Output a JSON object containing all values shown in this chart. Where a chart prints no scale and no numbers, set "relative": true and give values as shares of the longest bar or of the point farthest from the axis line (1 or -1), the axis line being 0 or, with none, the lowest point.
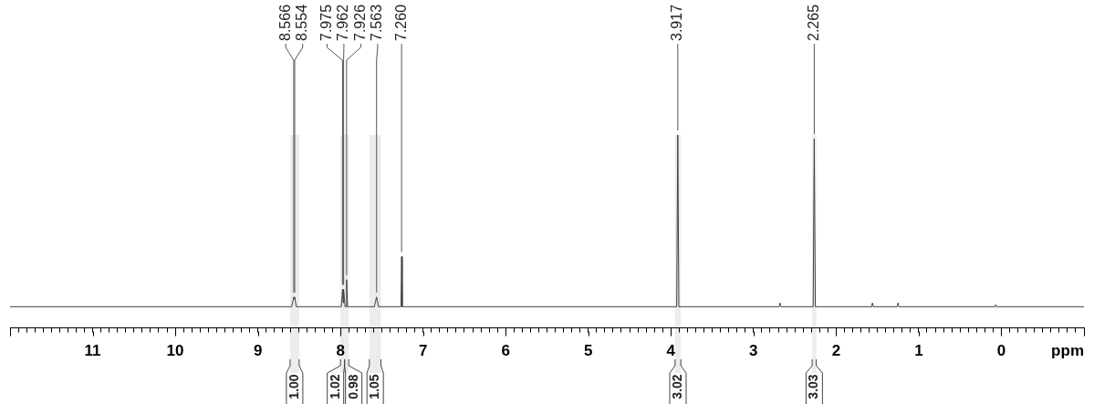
{
  "chart_data": {
    "type": "line",
    "relative": true,
    "xlabel": "ppm",
    "series": [
      {
        "color": "#404040",
        "x": [
          12,
          8.59,
          8.566,
          8.56,
          8.554,
          8.535,
          7.99,
          7.975,
          7.968,
          7.962,
          7.945,
          7.935,
          7.926,
          7.915,
          7.59,
          7.563,
          7.54,
          7.268,
          7.26,
          7.252,
          3.93,
          3.917,
          3.904,
          2.69,
          2.68,
          2.67,
          2.278,
          2.265,
          2.252,
          1.57,
          1.56,
          1.55,
          1.26,
          1.25,
          1.24,
          0.08,
          0.07,
          0.06,
          -1
        ],
        "values": [
          0.11,
          0.11,
          0.16,
          0.15,
          0.16,
          0.11,
          0.11,
          0.2,
          0.13,
          0.2,
          0.11,
          0.11,
          0.25,
          0.11,
          0.11,
          0.16,
          0.11,
          0.11,
          0.37,
          0.11,
          0.11,
          1,
          0.11,
          0.11,
          0.13,
          0.11,
          0.11,
          0.98,
          0.11,
          0.11,
          0.13,
          0.11,
          0.11,
          0.13,
          0.11,
          0.11,
          0.12,
          0.11,
          0.11
        ]
      }
    ],
    "xlim": [
      12,
      -1
    ],
    "xticks": [
      {
        "value": 12,
        "label": null
      },
      {
        "value": 11.9,
        "label": null
      },
      {
        "value": 11.8,
        "label": null
      },
      {
        "value": 11.7,
        "label": null
      },
      {
        "value": 11.6,
        "label": null
      },
      {
        "value": 11.5,
        "label": null
      },
      {
        "value": 11.4,
        "label": null
      },
      {
        "value": 11.3,
        "label": null
      },
      {
        "value": 11.2,
        "label": null
      },
      {
        "value": 11.1,
        "label": null
      },
      11,
      {
        "value": 10.9,
        "label": null
      },
      {
        "value": 10.8,
        "label": null
      },
      {
        "value": 10.7,
        "label": null
      },
      {
        "value": 10.6,
        "label": null
      },
      {
        "value": 10.5,
        "label": null
      },
      {
        "value": 10.4,
        "label": null
      },
      {
        "value": 10.3,
        "label": null
      },
      {
        "value": 10.2,
        "label": null
      },
      {
        "value": 10.1,
        "label": null
      },
      10,
      {
        "value": 9.9,
        "label": null
      },
      {
        "value": 9.8,
        "label": null
      },
      {
        "value": 9.7,
        "label": null
      },
      {
        "value": 9.6,
        "label": null
      },
      {
        "value": 9.5,
        "label": null
      },
      {
        "value": 9.4,
        "label": null
      },
      {
        "value": 9.3,
        "label": null
      },
      {
        "value": 9.2,
        "label": null
      },
      {
        "value": 9.1,
        "label": null
      },
      9,
      {
        "value": 8.9,
        "label": null
      },
      {
        "value": 8.8,
        "label": null
      },
      {
        "value": 8.7,
        "label": null
      },
      {
        "value": 8.6,
        "label": null
      },
      {
        "value": 8.5,
        "label": null
      },
      {
        "value": 8.4,
        "label": null
      },
      {
        "value": 8.3,
        "label": null
      },
      {
        "value": 8.2,
        "label": null
      },
      {
        "value": 8.1,
        "label": null
      },
      8,
      {
        "value": 7.9,
        "label": null
      },
      {
        "value": 7.8,
        "label": null
      },
      {
        "value": 7.7,
        "label": null
      },
      {
        "value": 7.6,
        "label": null
      },
      {
        "value": 7.5,
        "label": null
      },
      {
        "value": 7.4,
        "label": null
      },
      {
        "value": 7.3,
        "label": null
      },
      {
        "value": 7.2,
        "label": null
      },
      {
        "value": 7.1,
        "label": null
      },
      7,
      {
        "value": 6.9,
        "label": null
      },
      {
        "value": 6.8,
        "label": null
      },
      {
        "value": 6.7,
        "label": null
      },
      {
        "value": 6.6,
        "label": null
      },
      {
        "value": 6.5,
        "label": null
      },
      {
        "value": 6.4,
        "label": null
      },
      {
        "value": 6.3,
        "label": null
      },
      {
        "value": 6.2,
        "label": null
      },
      {
        "value": 6.1,
        "label": null
      },
      6,
      {
        "value": 5.9,
        "label": null
      },
      {
        "value": 5.8,
        "label": null
      },
      {
        "value": 5.7,
        "label": null
      },
      {
        "value": 5.6,
        "label": null
      },
      {
        "value": 5.5,
        "label": null
      },
      {
        "value": 5.4,
        "label": null
      },
      {
        "value": 5.3,
        "label": null
      },
      {
        "value": 5.2,
        "label": null
      },
      {
        "value": 5.1,
        "label": null
      },
      5,
      {
        "value": 4.9,
        "label": null
      },
      {
        "value": 4.8,
        "label": null
      },
      {
        "value": 4.7,
        "label": null
      },
      {
        "value": 4.6,
        "label": null
      },
      {
        "value": 4.5,
        "label": null
      },
      {
        "value": 4.4,
        "label": null
      },
      {
        "value": 4.3,
        "label": null
      },
      {
        "value": 4.2,
        "label": null
      },
      {
        "value": 4.1,
        "label": null
      },
      4,
      {
        "value": 3.9,
        "label": null
      },
      {
        "value": 3.8,
        "label": null
      },
      {
        "value": 3.7,
        "label": null
      },
      {
        "value": 3.6,
        "label": null
      },
      {
        "value": 3.5,
        "label": null
      },
      {
        "value": 3.4,
        "label": null
      },
      {
        "value": 3.3,
        "label": null
      },
      {
        "value": 3.2,
        "label": null
      },
      {
        "value": 3.1,
        "label": null
      },
      3,
      {
        "value": 2.9,
        "label": null
      },
      {
        "value": 2.8,
        "label": null
      },
      {
        "value": 2.7,
        "label": null
      },
      {
        "value": 2.6,
        "label": null
      },
      {
        "value": 2.5,
        "label": null
      },
      {
        "value": 2.4,
        "label": null
      },
      {
        "value": 2.3,
        "label": null
      },
      {
        "value": 2.2,
        "label": null
      },
      {
        "value": 2.1,
        "label": null
      },
      2,
      {
        "value": 1.9,
        "label": null
      },
      {
        "value": 1.8,
        "label": null
      },
      {
        "value": 1.7,
        "label": null
      },
      {
        "value": 1.6,
        "label": null
      },
      {
        "value": 1.5,
        "label": null
      },
      {
        "value": 1.4,
        "label": null
      },
      {
        "value": 1.3,
        "label": null
      },
      {
        "value": 1.2,
        "label": null
      },
      {
        "value": 1.1,
        "label": null
      },
      1,
      {
        "value": 0.9,
        "label": null
      },
      {
        "value": 0.8,
        "label": null
      },
      {
        "value": 0.7,
        "label": null
      },
      {
        "value": 0.6,
        "label": null
      },
      {
        "value": 0.5,
        "label": null
      },
      {
        "value": 0.4,
        "label": null
      },
      {
        "value": 0.3,
        "label": null
      },
      {
        "value": 0.2,
        "label": null
      },
      {
        "value": 0.1,
        "label": null
      },
      0,
      {
        "value": -0.1,
        "label": null
      },
      {
        "value": -0.2,
        "label": null
      },
      {
        "value": -0.3,
        "label": null
      },
      {
        "value": -0.4,
        "label": null
      },
      {
        "value": -0.5,
        "label": null
      },
      {
        "value": -0.6,
        "label": null
      },
      {
        "value": -0.7,
        "label": null
      },
      {
        "value": -0.8,
        "label": null
      },
      {
        "value": -0.9,
        "label": null
      },
      {
        "value": -1,
        "label": null
      }
    ],
    "annotations": [
      {
        "text": "8.566",
        "x": 8.566,
        "y": 0.16
      },
      {
        "text": "8.554",
        "x": 8.554,
        "y": 0.16
      },
      {
        "text": "7.975",
        "x": 7.975,
        "y": 0.2
      },
      {
        "text": "7.962",
        "x": 7.962,
        "y": 0.2
      },
      {
        "text": "7.926",
        "x": 7.926,
        "y": 0.25
      },
      {
        "text": "7.563",
        "x": 7.563,
        "y": 0.16
      },
      {
        "text": "7.260",
        "x": 7.26,
        "y": 0.37
      },
      {
        "text": "3.917",
        "x": 3.917,
        "y": 1
      },
      {
        "text": "2.265",
        "x": 2.265,
        "y": 0.98
      }
    ],
    "bands": [
      {
        "axis": "x",
        "from": 8.61,
        "to": 8.5,
        "label": "1.00",
        "color": "#ececec"
      },
      {
        "axis": "x",
        "from": 8.0,
        "to": 7.95,
        "label": "1.02",
        "color": "#ececec"
      },
      {
        "axis": "x",
        "from": 7.95,
        "to": 7.9,
        "label": "0.98",
        "color": "#ececec"
      },
      {
        "axis": "x",
        "from": 7.65,
        "to": 7.51,
        "label": "1.05",
        "color": "#ececec"
      },
      {
        "axis": "x",
        "from": 3.95,
        "to": 3.88,
        "label": "3.02",
        "color": "#ececec"
      },
      {
        "axis": "x",
        "from": 2.29,
        "to": 2.24,
        "label": "3.03",
        "color": "#ececec"
      }
    ]
  }
}
